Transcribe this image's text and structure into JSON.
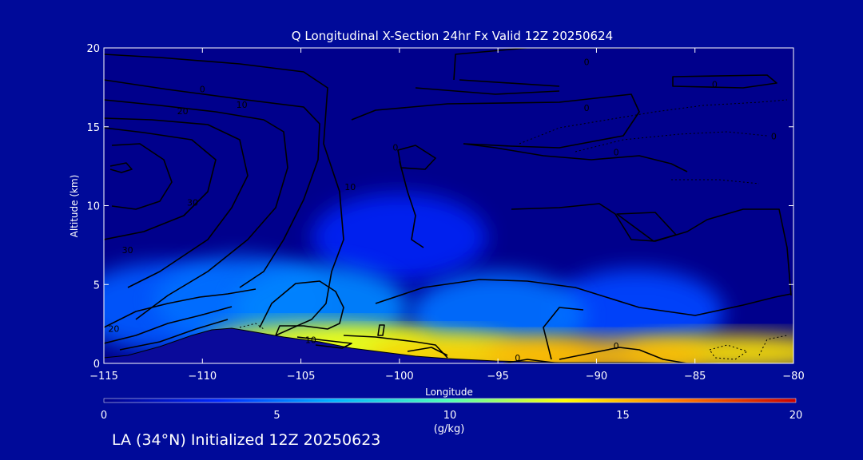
{
  "chart_data": {
    "type": "heatmap",
    "title": "Q Longitudinal X-Section 24hr  Fx Valid 12Z 20250624",
    "xlabel": "Longitude",
    "ylabel": "Altitude (km)",
    "xlim": [
      -115,
      -80
    ],
    "ylim": [
      0,
      20
    ],
    "x_ticks": [
      -115,
      -110,
      -105,
      -100,
      -95,
      -90,
      -85,
      -80
    ],
    "x_tick_labels": [
      "−115",
      "−110",
      "−105",
      "−100",
      "−95",
      "−90",
      "−85",
      "−80"
    ],
    "y_ticks": [
      0,
      5,
      10,
      15,
      20
    ],
    "y_tick_labels": [
      "0",
      "5",
      "10",
      "15",
      "20"
    ],
    "colorbar": {
      "label": "(g/kg)",
      "min": 0,
      "max": 20,
      "ticks": [
        0,
        5,
        10,
        15,
        20
      ],
      "tick_labels": [
        "0",
        "5",
        "10",
        "15",
        "20"
      ],
      "colors": [
        "#00008c",
        "#0028ff",
        "#00b4ff",
        "#50ffb4",
        "#ffff00",
        "#ff7800",
        "#c80000"
      ]
    },
    "humidity_field": [
      {
        "x": -112,
        "y": 3.6,
        "value": 4.5
      },
      {
        "x": -108,
        "y": 4.0,
        "value": 5.0
      },
      {
        "x": -104,
        "y": 3.5,
        "value": 5.5
      },
      {
        "x": -104,
        "y": 1.4,
        "value": 13.0
      },
      {
        "x": -100,
        "y": 0.9,
        "value": 12.5
      },
      {
        "x": -96,
        "y": 0.5,
        "value": 14.5
      },
      {
        "x": -90,
        "y": 0.5,
        "value": 15.0
      },
      {
        "x": -83,
        "y": 0.7,
        "value": 14.0
      },
      {
        "x": -95,
        "y": 3.0,
        "value": 5.0
      },
      {
        "x": -88,
        "y": 3.2,
        "value": 4.0
      },
      {
        "x": -100,
        "y": 8.0,
        "value": 3.0
      }
    ],
    "terrain_peak": {
      "x": -108.5,
      "y": 2.0
    },
    "contour_labels": [
      {
        "text": "0",
        "x": -90.5,
        "y": 18.9
      },
      {
        "text": "0",
        "x": -84,
        "y": 17.5
      },
      {
        "text": "0",
        "x": -90.5,
        "y": 16.0
      },
      {
        "text": "0",
        "x": -89,
        "y": 13.2
      },
      {
        "text": "0",
        "x": -81,
        "y": 14.2
      },
      {
        "text": "0",
        "x": -110,
        "y": 17.2
      },
      {
        "text": "10",
        "x": -108,
        "y": 16.2
      },
      {
        "text": "20",
        "x": -111,
        "y": 15.8
      },
      {
        "text": "30",
        "x": -110.5,
        "y": 10.0
      },
      {
        "text": "30",
        "x": -113.8,
        "y": 7.0
      },
      {
        "text": "10",
        "x": -102.5,
        "y": 11.0
      },
      {
        "text": "0",
        "x": -100.2,
        "y": 13.5
      },
      {
        "text": "10",
        "x": -104.5,
        "y": 1.3
      },
      {
        "text": "0",
        "x": -94,
        "y": 0.15
      },
      {
        "text": "0",
        "x": -89,
        "y": 0.9
      },
      {
        "text": "20",
        "x": -114.5,
        "y": 2.0
      }
    ]
  },
  "footer": "LA (34°N) Initialized 12Z 20250623"
}
